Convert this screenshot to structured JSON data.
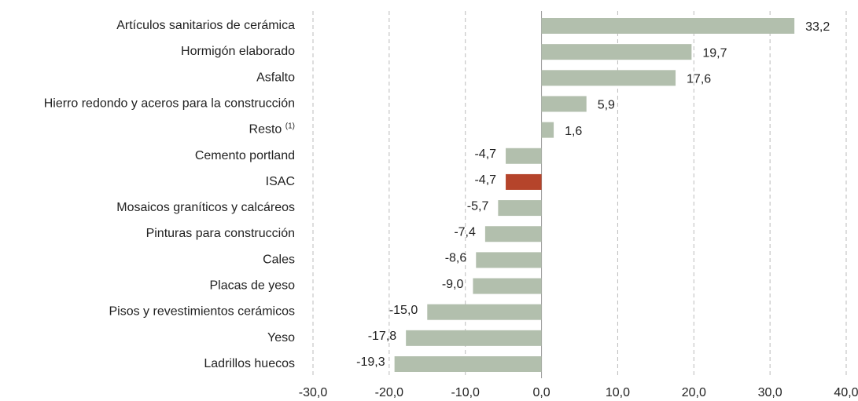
{
  "chart_data": {
    "type": "bar",
    "orientation": "horizontal",
    "categories": [
      "Artículos sanitarios de cerámica",
      "Hormigón elaborado",
      "Asfalto",
      "Hierro redondo y aceros para la construcción",
      "Resto",
      "Cemento portland",
      "ISAC",
      "Mosaicos graníticos y calcáreos",
      "Pinturas para construcción",
      "Cales",
      "Placas de yeso",
      "Pisos y revestimientos cerámicos",
      "Yeso",
      "Ladrillos huecos"
    ],
    "category_notes": [
      null,
      null,
      null,
      null,
      "(1)",
      null,
      null,
      null,
      null,
      null,
      null,
      null,
      null,
      null
    ],
    "values": [
      33.2,
      19.7,
      17.6,
      5.9,
      1.6,
      -4.7,
      -4.7,
      -5.7,
      -7.4,
      -8.6,
      -9.0,
      -15.0,
      -17.8,
      -19.3
    ],
    "value_labels": [
      "33,2",
      "19,7",
      "17,6",
      "5,9",
      "1,6",
      "-4,7",
      "-4,7",
      "-5,7",
      "-7,4",
      "-8,6",
      "-9,0",
      "-15,0",
      "-17,8",
      "-19,3"
    ],
    "colors": [
      "#b2bfad",
      "#b2bfad",
      "#b2bfad",
      "#b2bfad",
      "#b2bfad",
      "#b2bfad",
      "#b5442b",
      "#b2bfad",
      "#b2bfad",
      "#b2bfad",
      "#b2bfad",
      "#b2bfad",
      "#b2bfad",
      "#b2bfad"
    ],
    "xlim": [
      -30,
      40
    ],
    "xticks": [
      {
        "value": -30,
        "label": "-30,0"
      },
      {
        "value": -20,
        "label": "-20,0"
      },
      {
        "value": -10,
        "label": "-10,0"
      },
      {
        "value": 0,
        "label": "0,0"
      },
      {
        "value": 10,
        "label": "10,0"
      },
      {
        "value": 20,
        "label": "20,0"
      },
      {
        "value": 30,
        "label": "30,0"
      },
      {
        "value": 40,
        "label": "40,0"
      }
    ],
    "grid": true
  }
}
